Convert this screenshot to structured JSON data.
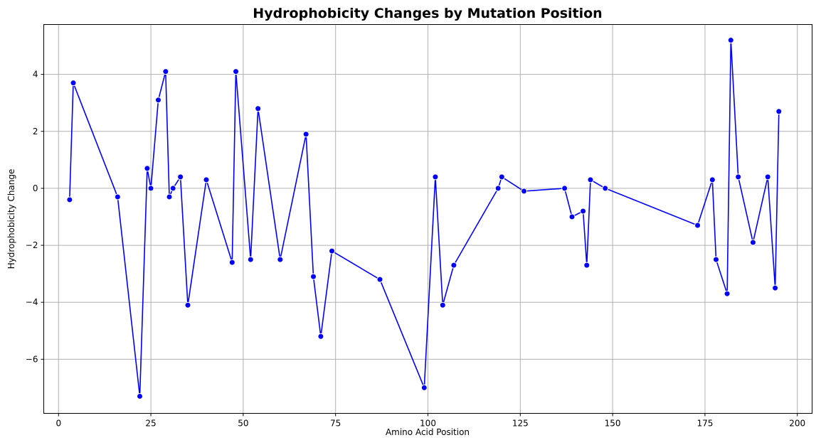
{
  "chart_data": {
    "type": "line",
    "title": "Hydrophobicity Changes by Mutation Position",
    "xlabel": "Amino Acid Position",
    "ylabel": "Hydrophobicity Change",
    "xlim": [
      -4,
      204
    ],
    "ylim": [
      -7.9,
      5.75
    ],
    "xticks": [
      0,
      25,
      50,
      75,
      100,
      125,
      150,
      175,
      200
    ],
    "xtick_labels": [
      "0",
      "25",
      "50",
      "75",
      "100",
      "125",
      "150",
      "175",
      "200"
    ],
    "yticks": [
      -6,
      -4,
      -2,
      0,
      2,
      4
    ],
    "ytick_labels": [
      "−6",
      "−4",
      "−2",
      "0",
      "2",
      "4"
    ],
    "grid": true,
    "series": [
      {
        "color": "#0000ff",
        "marker": "circle",
        "x": [
          3,
          4,
          16,
          22,
          24,
          25,
          27,
          29,
          30,
          31,
          33,
          35,
          40,
          47,
          48,
          52,
          54,
          60,
          67,
          69,
          71,
          74,
          87,
          99,
          102,
          104,
          107,
          119,
          120,
          126,
          137,
          139,
          142,
          143,
          144,
          148,
          173,
          177,
          178,
          181,
          182,
          184,
          188,
          192,
          194,
          195
        ],
        "y": [
          -0.4,
          3.7,
          -0.3,
          -7.3,
          0.7,
          0.0,
          3.1,
          4.1,
          -0.3,
          0.0,
          0.4,
          -4.1,
          0.3,
          -2.6,
          4.1,
          -2.5,
          2.8,
          -2.5,
          1.9,
          -3.1,
          -5.2,
          -2.2,
          -3.2,
          -7.0,
          0.4,
          -4.1,
          -2.7,
          0.0,
          0.4,
          -0.1,
          0.0,
          -1.0,
          -0.8,
          -2.7,
          0.3,
          0.0,
          -1.3,
          0.3,
          -2.5,
          -3.7,
          5.2,
          0.4,
          -1.9,
          0.4,
          -3.5,
          2.7
        ]
      }
    ]
  }
}
